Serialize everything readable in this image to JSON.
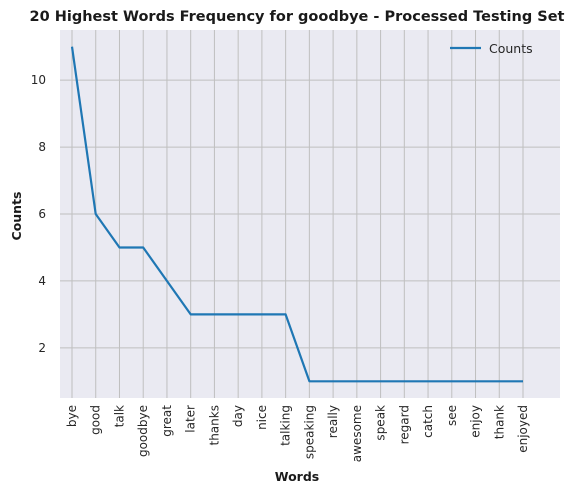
{
  "chart_data": {
    "type": "line",
    "title": "20 Highest Words Frequency for goodbye - Processed Testing Set",
    "xlabel": "Words",
    "ylabel": "Counts",
    "categories": [
      "bye",
      "good",
      "talk",
      "goodbye",
      "great",
      "later",
      "thanks",
      "day",
      "nice",
      "talking",
      "speaking",
      "really",
      "awesome",
      "speak",
      "regard",
      "catch",
      "see",
      "enjoy",
      "thank",
      "enjoyed"
    ],
    "series": [
      {
        "name": "Counts",
        "values": [
          11,
          6,
          5,
          5,
          4,
          3,
          3,
          3,
          3,
          3,
          1,
          1,
          1,
          1,
          1,
          1,
          1,
          1,
          1,
          1
        ]
      }
    ],
    "ylim": [
      0.5,
      11.5
    ],
    "yticks": [
      2,
      4,
      6,
      8,
      10
    ],
    "grid": true,
    "legend": "top-right",
    "colors": {
      "line": "#1f77b4",
      "background": "#eaeaf2",
      "grid": "#bfbfbf"
    }
  }
}
